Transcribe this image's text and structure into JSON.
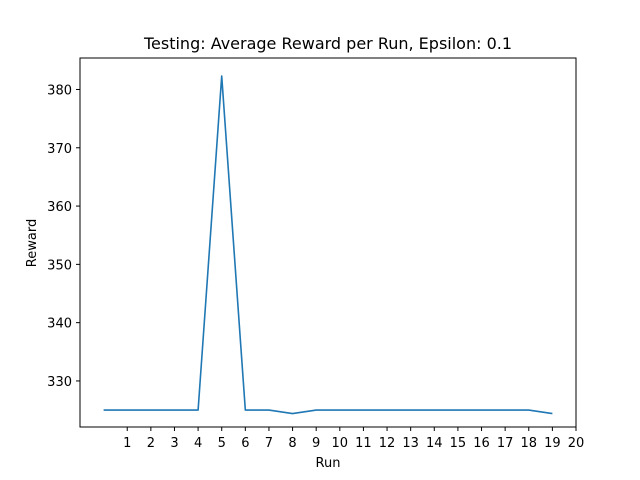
{
  "chart_data": {
    "type": "line",
    "title": "Testing: Average Reward per Run, Epsilon: 0.1",
    "xlabel": "Run",
    "ylabel": "Reward",
    "xlim": [
      -1,
      20
    ],
    "ylim": [
      322.1,
      385.4
    ],
    "xticks": [
      1,
      2,
      3,
      4,
      5,
      6,
      7,
      8,
      9,
      10,
      11,
      12,
      13,
      14,
      15,
      16,
      17,
      18,
      19,
      20
    ],
    "yticks": [
      330,
      340,
      350,
      360,
      370,
      380
    ],
    "grid": false,
    "series": [
      {
        "color": "#1f77b4",
        "x": [
          0,
          1,
          2,
          3,
          4,
          5,
          6,
          7,
          8,
          9,
          10,
          11,
          12,
          13,
          14,
          15,
          16,
          17,
          18,
          19
        ],
        "y": [
          325.0,
          325.0,
          325.0,
          325.0,
          325.0,
          382.3,
          325.0,
          325.0,
          324.4,
          325.0,
          325.0,
          325.0,
          325.0,
          325.0,
          325.0,
          325.0,
          325.0,
          325.0,
          325.0,
          324.4
        ]
      }
    ]
  }
}
